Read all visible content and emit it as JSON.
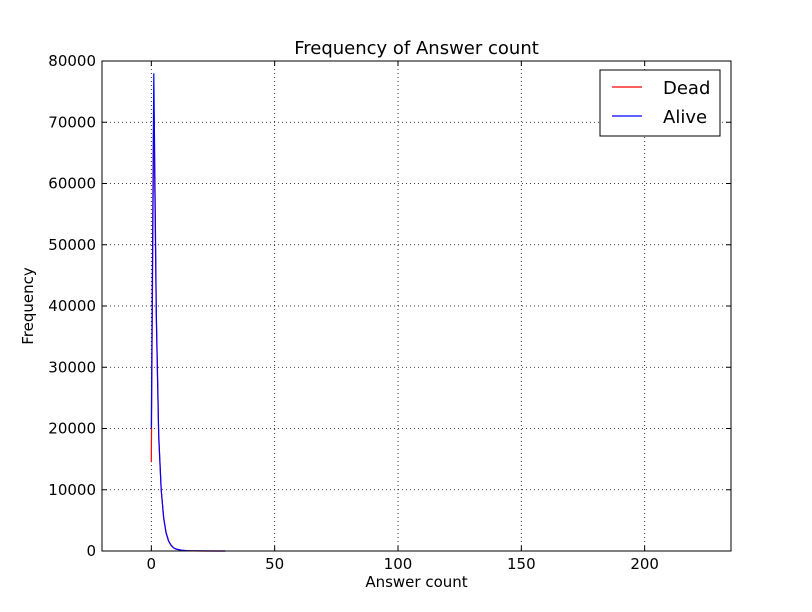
{
  "chart_data": {
    "type": "line",
    "title": "Frequency of Answer count",
    "xlabel": "Answer count",
    "ylabel": "Frequency",
    "xlim": [
      -20,
      235
    ],
    "ylim": [
      0,
      80000
    ],
    "xticks": [
      0,
      50,
      100,
      150,
      200
    ],
    "yticks": [
      0,
      10000,
      20000,
      30000,
      40000,
      50000,
      60000,
      70000,
      80000
    ],
    "grid": true,
    "legend_position": "top-right",
    "series": [
      {
        "name": "Dead",
        "color": "#ff0000",
        "x": [
          0,
          1,
          2,
          3,
          4,
          5,
          6,
          7,
          8,
          9,
          10,
          12,
          14,
          16,
          18,
          20,
          25,
          30
        ],
        "y": [
          14500,
          74000,
          38000,
          18500,
          10000,
          5300,
          2900,
          1600,
          900,
          500,
          300,
          130,
          60,
          30,
          15,
          8,
          2,
          0
        ]
      },
      {
        "name": "Alive",
        "color": "#0000ff",
        "x": [
          0,
          1,
          2,
          3,
          4,
          5,
          6,
          7,
          8,
          9,
          10,
          12,
          14,
          16,
          18,
          20,
          25,
          30
        ],
        "y": [
          20000,
          78000,
          39000,
          19000,
          10000,
          5400,
          3000,
          1650,
          950,
          520,
          320,
          140,
          65,
          32,
          16,
          9,
          2,
          0
        ]
      }
    ]
  }
}
